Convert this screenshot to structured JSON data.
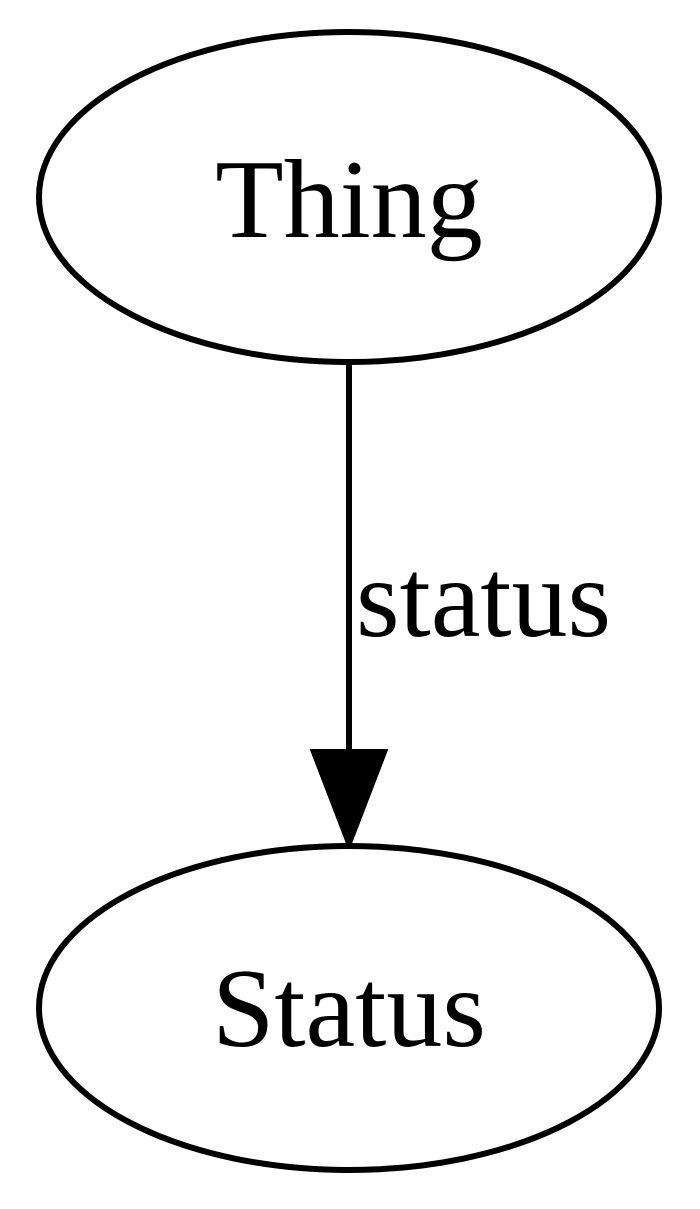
{
  "graph": {
    "nodes": [
      {
        "id": "thing",
        "label": "Thing"
      },
      {
        "id": "status",
        "label": "Status"
      }
    ],
    "edges": [
      {
        "from": "thing",
        "to": "status",
        "label": "status"
      }
    ]
  }
}
